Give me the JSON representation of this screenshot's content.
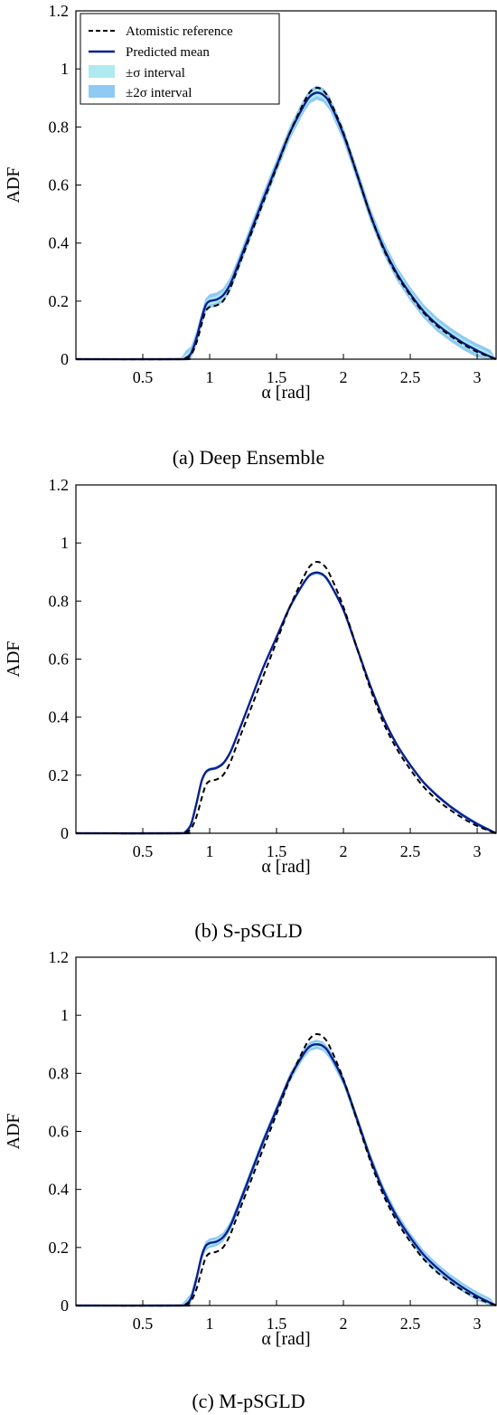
{
  "chart_data": [
    {
      "type": "line",
      "caption": "(a) Deep Ensemble",
      "xlabel": "α [rad]",
      "ylabel": "ADF",
      "xlim": [
        0,
        3.1416
      ],
      "ylim": [
        0,
        1.2
      ],
      "xticks": [
        0.5,
        1,
        1.5,
        2,
        2.5,
        3
      ],
      "xtick_labels": [
        "0.5",
        "1",
        "1.5",
        "2",
        "2.5",
        "3"
      ],
      "yticks": [
        0,
        0.2,
        0.4,
        0.6,
        0.8,
        1,
        1.2
      ],
      "ytick_labels": [
        "0",
        "0.2",
        "0.4",
        "0.6",
        "0.8",
        "1",
        "1.2"
      ],
      "grid": false,
      "legend_position": "top-left",
      "legend": [
        "Atomistic reference",
        "Predicted mean",
        "±σ interval",
        "±2σ interval"
      ],
      "colors": {
        "reference": "#000000",
        "mean": "#0a1f8f",
        "sigma1": "#aeeaf0",
        "sigma2": "#8ecaf4"
      },
      "band_width": 0.012,
      "series": [
        {
          "name": "Atomistic reference",
          "style": "dashed",
          "x": [
            0,
            0.78,
            0.82,
            0.86,
            0.9,
            0.94,
            0.97,
            1.0,
            1.05,
            1.1,
            1.15,
            1.2,
            1.3,
            1.4,
            1.5,
            1.6,
            1.7,
            1.75,
            1.8,
            1.85,
            1.9,
            2.0,
            2.1,
            2.2,
            2.3,
            2.4,
            2.5,
            2.6,
            2.7,
            2.8,
            2.9,
            3.0,
            3.1,
            3.1416
          ],
          "y": [
            0,
            0,
            0.003,
            0.015,
            0.055,
            0.12,
            0.165,
            0.18,
            0.185,
            0.2,
            0.24,
            0.3,
            0.42,
            0.54,
            0.66,
            0.78,
            0.88,
            0.92,
            0.935,
            0.925,
            0.89,
            0.78,
            0.64,
            0.5,
            0.38,
            0.29,
            0.22,
            0.16,
            0.115,
            0.08,
            0.05,
            0.025,
            0.007,
            0
          ]
        },
        {
          "name": "Predicted mean",
          "style": "solid",
          "x": [
            0,
            0.78,
            0.82,
            0.86,
            0.9,
            0.94,
            0.97,
            1.0,
            1.05,
            1.1,
            1.15,
            1.2,
            1.3,
            1.4,
            1.5,
            1.6,
            1.7,
            1.75,
            1.8,
            1.85,
            1.9,
            2.0,
            2.1,
            2.2,
            2.3,
            2.4,
            2.5,
            2.6,
            2.7,
            2.8,
            2.9,
            3.0,
            3.1,
            3.1416
          ],
          "y": [
            0,
            0,
            0.004,
            0.02,
            0.07,
            0.14,
            0.185,
            0.2,
            0.205,
            0.22,
            0.255,
            0.31,
            0.43,
            0.55,
            0.665,
            0.78,
            0.87,
            0.905,
            0.918,
            0.91,
            0.88,
            0.775,
            0.64,
            0.5,
            0.385,
            0.295,
            0.225,
            0.165,
            0.12,
            0.085,
            0.055,
            0.03,
            0.008,
            0
          ]
        }
      ]
    },
    {
      "type": "line",
      "caption": "(b) S-pSGLD",
      "xlabel": "α [rad]",
      "ylabel": "ADF",
      "xlim": [
        0,
        3.1416
      ],
      "ylim": [
        0,
        1.2
      ],
      "xticks": [
        0.5,
        1,
        1.5,
        2,
        2.5,
        3
      ],
      "xtick_labels": [
        "0.5",
        "1",
        "1.5",
        "2",
        "2.5",
        "3"
      ],
      "yticks": [
        0,
        0.2,
        0.4,
        0.6,
        0.8,
        1,
        1.2
      ],
      "ytick_labels": [
        "0",
        "0.2",
        "0.4",
        "0.6",
        "0.8",
        "1",
        "1.2"
      ],
      "grid": false,
      "colors": {
        "reference": "#000000",
        "mean": "#0a1f8f",
        "sigma1": "#aeeaf0",
        "sigma2": "#8ecaf4"
      },
      "band_width": 0.003,
      "series": [
        {
          "name": "Atomistic reference",
          "style": "dashed",
          "x": [
            0,
            0.78,
            0.82,
            0.86,
            0.9,
            0.94,
            0.97,
            1.0,
            1.05,
            1.1,
            1.15,
            1.2,
            1.3,
            1.4,
            1.5,
            1.6,
            1.7,
            1.75,
            1.8,
            1.85,
            1.9,
            2.0,
            2.1,
            2.2,
            2.3,
            2.4,
            2.5,
            2.6,
            2.7,
            2.8,
            2.9,
            3.0,
            3.1,
            3.1416
          ],
          "y": [
            0,
            0,
            0.003,
            0.015,
            0.055,
            0.12,
            0.165,
            0.18,
            0.185,
            0.2,
            0.24,
            0.3,
            0.42,
            0.54,
            0.66,
            0.78,
            0.88,
            0.92,
            0.935,
            0.925,
            0.89,
            0.78,
            0.64,
            0.5,
            0.38,
            0.29,
            0.22,
            0.16,
            0.115,
            0.08,
            0.05,
            0.025,
            0.007,
            0
          ]
        },
        {
          "name": "Predicted mean",
          "style": "solid",
          "x": [
            0,
            0.78,
            0.82,
            0.86,
            0.9,
            0.94,
            0.97,
            1.0,
            1.05,
            1.1,
            1.15,
            1.2,
            1.3,
            1.4,
            1.5,
            1.6,
            1.7,
            1.75,
            1.8,
            1.85,
            1.9,
            2.0,
            2.1,
            2.2,
            2.3,
            2.4,
            2.5,
            2.6,
            2.7,
            2.8,
            2.9,
            3.0,
            3.1,
            3.1416
          ],
          "y": [
            0,
            0,
            0.005,
            0.03,
            0.1,
            0.18,
            0.21,
            0.22,
            0.225,
            0.24,
            0.275,
            0.33,
            0.45,
            0.57,
            0.675,
            0.78,
            0.86,
            0.89,
            0.898,
            0.89,
            0.86,
            0.77,
            0.64,
            0.51,
            0.395,
            0.305,
            0.235,
            0.175,
            0.13,
            0.092,
            0.06,
            0.032,
            0.009,
            0
          ]
        }
      ]
    },
    {
      "type": "line",
      "caption": "(c) M-pSGLD",
      "xlabel": "α [rad]",
      "ylabel": "ADF",
      "xlim": [
        0,
        3.1416
      ],
      "ylim": [
        0,
        1.2
      ],
      "xticks": [
        0.5,
        1,
        1.5,
        2,
        2.5,
        3
      ],
      "xtick_labels": [
        "0.5",
        "1",
        "1.5",
        "2",
        "2.5",
        "3"
      ],
      "yticks": [
        0,
        0.2,
        0.4,
        0.6,
        0.8,
        1,
        1.2
      ],
      "ytick_labels": [
        "0",
        "0.2",
        "0.4",
        "0.6",
        "0.8",
        "1",
        "1.2"
      ],
      "grid": false,
      "colors": {
        "reference": "#000000",
        "mean": "#0a1f8f",
        "sigma1": "#aeeaf0",
        "sigma2": "#8ecaf4"
      },
      "band_width": 0.008,
      "series": [
        {
          "name": "Atomistic reference",
          "style": "dashed",
          "x": [
            0,
            0.78,
            0.82,
            0.86,
            0.9,
            0.94,
            0.97,
            1.0,
            1.05,
            1.1,
            1.15,
            1.2,
            1.3,
            1.4,
            1.5,
            1.6,
            1.7,
            1.75,
            1.8,
            1.85,
            1.9,
            2.0,
            2.1,
            2.2,
            2.3,
            2.4,
            2.5,
            2.6,
            2.7,
            2.8,
            2.9,
            3.0,
            3.1,
            3.1416
          ],
          "y": [
            0,
            0,
            0.003,
            0.015,
            0.055,
            0.12,
            0.165,
            0.18,
            0.185,
            0.2,
            0.24,
            0.3,
            0.42,
            0.54,
            0.66,
            0.78,
            0.88,
            0.92,
            0.935,
            0.925,
            0.89,
            0.78,
            0.64,
            0.5,
            0.38,
            0.29,
            0.22,
            0.16,
            0.115,
            0.08,
            0.05,
            0.025,
            0.007,
            0
          ]
        },
        {
          "name": "Predicted mean",
          "style": "solid",
          "x": [
            0,
            0.78,
            0.82,
            0.86,
            0.9,
            0.94,
            0.97,
            1.0,
            1.05,
            1.1,
            1.15,
            1.2,
            1.3,
            1.4,
            1.5,
            1.6,
            1.7,
            1.75,
            1.8,
            1.85,
            1.9,
            2.0,
            2.1,
            2.2,
            2.3,
            2.4,
            2.5,
            2.6,
            2.7,
            2.8,
            2.9,
            3.0,
            3.1,
            3.1416
          ],
          "y": [
            0,
            0,
            0.004,
            0.025,
            0.09,
            0.17,
            0.205,
            0.215,
            0.22,
            0.235,
            0.27,
            0.325,
            0.445,
            0.565,
            0.675,
            0.785,
            0.865,
            0.893,
            0.9,
            0.893,
            0.865,
            0.775,
            0.645,
            0.51,
            0.395,
            0.305,
            0.235,
            0.175,
            0.13,
            0.092,
            0.06,
            0.032,
            0.009,
            0
          ]
        }
      ]
    }
  ]
}
